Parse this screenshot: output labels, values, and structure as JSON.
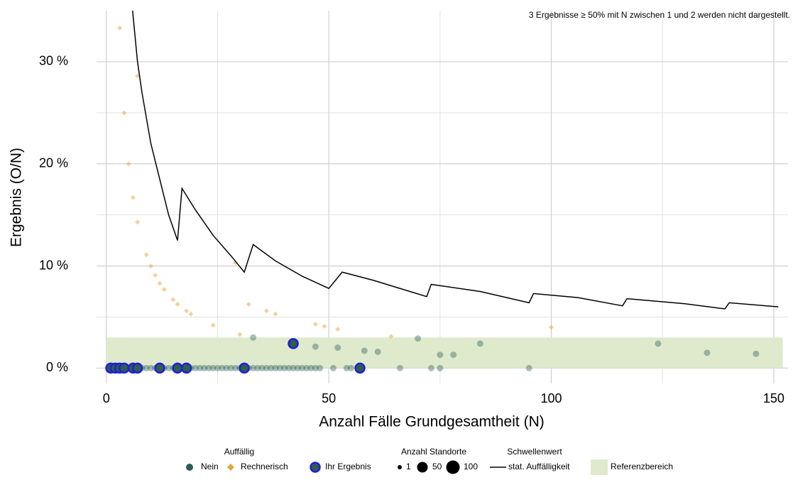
{
  "chart_data": {
    "type": "scatter",
    "annotation": "3 Ergebnisse ≥ 50% mit N zwischen 1 und 2 werden nicht dargestellt.",
    "x_label": "Anzahl Fälle Grundgesamtheit (N)",
    "y_label": "Ergebnis (O/N)",
    "xlim": [
      -2.2,
      153.2
    ],
    "ylim": [
      -1.5,
      35
    ],
    "xticks": [
      0,
      50,
      100,
      150
    ],
    "x_minor_ticks": [
      25,
      75,
      125
    ],
    "yticks": [
      {
        "value": 0,
        "label": "0 %"
      },
      {
        "value": 10,
        "label": "10 %"
      },
      {
        "value": 20,
        "label": "20 %"
      },
      {
        "value": 30,
        "label": "30 %"
      }
    ],
    "y_minor_ticks": [
      5,
      15,
      25
    ],
    "grid": true,
    "legend_position": "bottom",
    "legend_title": "Auffällig",
    "reference_area": {
      "name": "Referenzbereich",
      "ylim": [
        0,
        3
      ],
      "xlim": [
        0,
        152
      ],
      "color": "#dfeacd"
    },
    "size_legend": {
      "title": "Anzahl Standorte",
      "values": [
        1,
        50,
        100
      ]
    },
    "line_legend_title": "Schwellenwert",
    "series": [
      {
        "name": "Nein",
        "kind": "points",
        "color": "#2b5c57",
        "x": [
          1,
          2,
          3,
          4,
          5,
          6,
          7,
          8,
          9,
          10,
          11,
          12,
          13,
          14,
          15,
          16,
          17,
          18,
          19,
          20,
          21,
          22,
          23,
          24,
          25,
          26,
          27,
          28,
          29,
          30,
          31,
          32,
          33,
          34,
          35,
          36,
          37,
          38,
          39,
          40,
          41,
          42,
          43,
          44,
          45,
          46,
          47,
          48,
          51,
          54,
          55,
          57,
          66,
          73,
          75,
          95,
          33,
          47,
          52,
          58,
          61,
          70,
          75,
          78,
          84,
          124,
          135,
          146
        ],
        "values": [
          0,
          0,
          0,
          0,
          0,
          0,
          0,
          0,
          0,
          0,
          0,
          0,
          0,
          0,
          0,
          0,
          0,
          0,
          0,
          0,
          0,
          0,
          0,
          0,
          0,
          0,
          0,
          0,
          0,
          0,
          0,
          0,
          0,
          0,
          0,
          0,
          0,
          0,
          0,
          0,
          0,
          0,
          0,
          0,
          0,
          0,
          0,
          0,
          0,
          0,
          0,
          0,
          0,
          0,
          0,
          0,
          3.0,
          2.1,
          2.0,
          1.7,
          1.6,
          2.9,
          1.3,
          1.3,
          2.4,
          2.4,
          1.5,
          1.4
        ]
      },
      {
        "name": "Rechnerisch",
        "kind": "diamonds",
        "color": "#e8a33d",
        "x": [
          3,
          4,
          5,
          6,
          7,
          7,
          9,
          10,
          11,
          12,
          13,
          15,
          16,
          18,
          19,
          24,
          29,
          30,
          32,
          36,
          38,
          47,
          49,
          52,
          64,
          100
        ],
        "values": [
          33.3,
          25,
          20,
          16.7,
          14.3,
          28.6,
          11.1,
          10,
          9.1,
          8.3,
          7.7,
          6.7,
          6.25,
          5.6,
          5.3,
          4.2,
          10.3,
          3.3,
          6.25,
          5.6,
          5.3,
          4.3,
          4.1,
          3.8,
          3.1,
          4.0
        ]
      },
      {
        "name": "Ihr Ergebnis",
        "kind": "highlight",
        "color": "#2e5e4e",
        "edge_color": "#1f1fd6",
        "x": [
          1,
          2,
          3,
          4,
          6,
          7,
          12,
          16,
          18,
          31,
          57,
          42
        ],
        "values": [
          0,
          0,
          0,
          0,
          0,
          0,
          0,
          0,
          0,
          0,
          0,
          2.4
        ]
      },
      {
        "name": "stat. Auffälligkeit",
        "kind": "line",
        "color": "#000000",
        "x": [
          5.9,
          7,
          8,
          10,
          12,
          14,
          16,
          17,
          20,
          24,
          28,
          31,
          33,
          38,
          44,
          50,
          53,
          60,
          66,
          72,
          73,
          84,
          95,
          96,
          106,
          116,
          117,
          130,
          139,
          140,
          151
        ],
        "values": [
          35,
          30,
          27,
          22,
          18.5,
          15,
          12.5,
          17.6,
          15.5,
          13,
          11,
          9.4,
          12.1,
          10.5,
          9,
          7.8,
          9.4,
          8.6,
          7.8,
          7.0,
          8.2,
          7.5,
          6.4,
          7.3,
          6.9,
          6.1,
          6.8,
          6.3,
          5.8,
          6.4,
          6.0
        ]
      }
    ]
  }
}
